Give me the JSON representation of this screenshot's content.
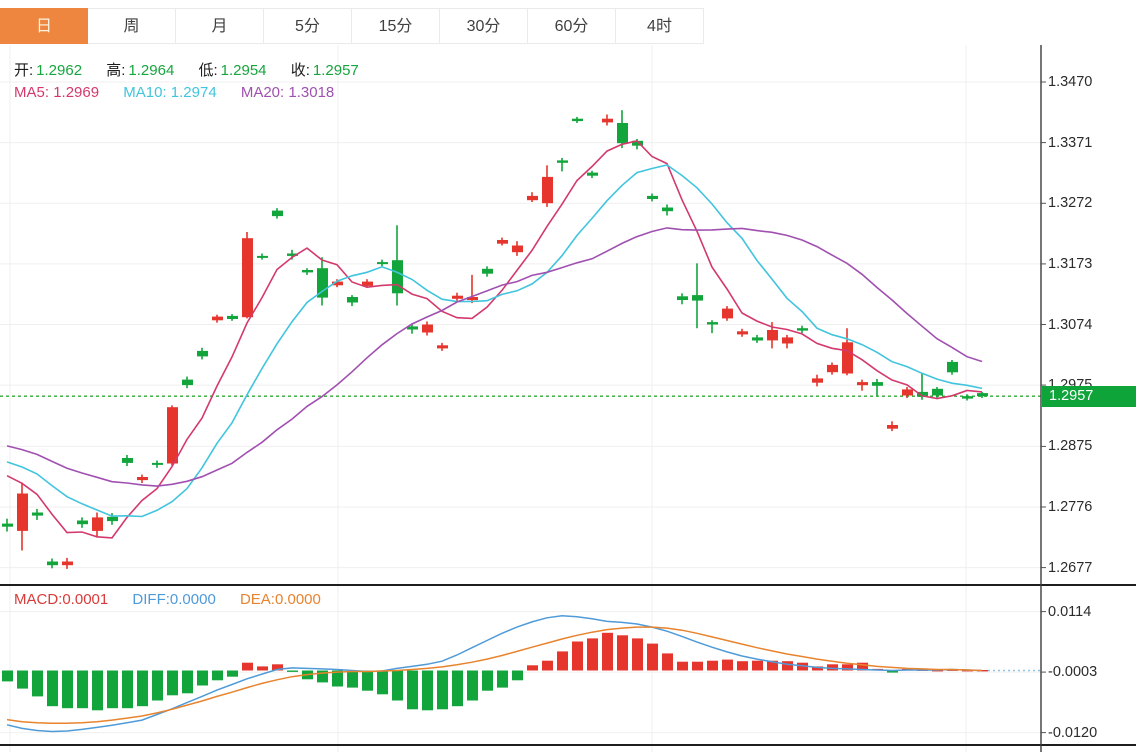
{
  "tabs": [
    {
      "label": "日",
      "active": true
    },
    {
      "label": "周",
      "active": false
    },
    {
      "label": "月",
      "active": false
    },
    {
      "label": "5分",
      "active": false
    },
    {
      "label": "15分",
      "active": false
    },
    {
      "label": "30分",
      "active": false
    },
    {
      "label": "60分",
      "active": false
    },
    {
      "label": "4时",
      "active": false
    }
  ],
  "ohlc_legend": {
    "open_label": "开:",
    "open_value": "1.2962",
    "high_label": "高:",
    "high_value": "1.2964",
    "low_label": "低:",
    "low_value": "1.2954",
    "close_label": "收:",
    "close_value": "1.2957"
  },
  "ma_legend": {
    "ma5_label": "MA5:",
    "ma5_value": "1.2969",
    "ma10_label": "MA10:",
    "ma10_value": "1.2974",
    "ma20_label": "MA20:",
    "ma20_value": "1.3018"
  },
  "macd_legend": {
    "macd_label": "MACD:",
    "macd_value": "0.0001",
    "diff_label": "DIFF:",
    "diff_value": "0.0000",
    "dea_label": "DEA:",
    "dea_value": "0.0000"
  },
  "price_axis": {
    "ticks": [
      "1.3470",
      "1.3371",
      "1.3272",
      "1.3173",
      "1.3074",
      "1.2975",
      "1.2875",
      "1.2776",
      "1.2677"
    ],
    "current_price": "1.2957"
  },
  "macd_axis": {
    "ticks": [
      "0.0114",
      "-0.0003",
      "-0.0120"
    ]
  },
  "colors": {
    "up": "#e5352c",
    "down": "#12a53c",
    "ma5": "#d3396d",
    "ma10": "#41c4dd",
    "ma20": "#a050b0",
    "diff": "#4f9ad8",
    "dea": "#e8832e",
    "active_tab": "#ef8640",
    "price_tag_bg": "#0ea43a",
    "current_line": "#2fa832",
    "grid": "#efefef",
    "axis_line": "#3c3c3c"
  },
  "chart_data": [
    {
      "type": "candlestick",
      "timeframe": "日",
      "up_color_rule": "red-up-green-down",
      "ylim": [
        1.265,
        1.353
      ],
      "axis_tick_values": [
        1.347,
        1.3371,
        1.3272,
        1.3173,
        1.3074,
        1.2975,
        1.2875,
        1.2776,
        1.2677
      ],
      "current_price": 1.2957,
      "ma_periods": [
        5,
        10,
        20
      ],
      "ma_last_values": {
        "ma5": 1.2969,
        "ma10": 1.2974,
        "ma20": 1.3018
      },
      "ma_seed_closes": [
        1.292,
        1.2916,
        1.2912,
        1.2908,
        1.2904,
        1.29,
        1.2896,
        1.2892,
        1.2888,
        1.2884,
        1.288,
        1.2876,
        1.2872,
        1.2868,
        1.2864,
        1.286,
        1.2852,
        1.2844,
        1.2836
      ],
      "ohlc": [
        [
          1.2749,
          1.2757,
          1.2736,
          1.2744
        ],
        [
          1.2737,
          1.2816,
          1.2705,
          1.2798
        ],
        [
          1.2767,
          1.2773,
          1.2755,
          1.2762
        ],
        [
          1.2687,
          1.2692,
          1.2676,
          1.2681
        ],
        [
          1.2681,
          1.2693,
          1.2675,
          1.2687
        ],
        [
          1.2754,
          1.2759,
          1.2742,
          1.2748
        ],
        [
          1.2737,
          1.2767,
          1.2726,
          1.2759
        ],
        [
          1.276,
          1.2766,
          1.2747,
          1.2753
        ],
        [
          1.2856,
          1.2861,
          1.2843,
          1.2848
        ],
        [
          1.282,
          1.2829,
          1.2815,
          1.2825
        ],
        [
          1.2848,
          1.2852,
          1.284,
          1.2845
        ],
        [
          1.2847,
          1.2942,
          1.2844,
          1.2939
        ],
        [
          1.2984,
          1.2989,
          1.297,
          1.2975
        ],
        [
          1.3031,
          1.3036,
          1.3017,
          1.3022
        ],
        [
          1.3081,
          1.309,
          1.3077,
          1.3087
        ],
        [
          1.3088,
          1.3091,
          1.308,
          1.3083
        ],
        [
          1.3086,
          1.3225,
          1.3084,
          1.3215
        ],
        [
          1.3186,
          1.319,
          1.318,
          1.3183
        ],
        [
          1.326,
          1.3264,
          1.3247,
          1.3251
        ],
        [
          1.319,
          1.3196,
          1.318,
          1.3186
        ],
        [
          1.3163,
          1.3166,
          1.3155,
          1.3159
        ],
        [
          1.3166,
          1.3184,
          1.3105,
          1.3118
        ],
        [
          1.3138,
          1.3148,
          1.3135,
          1.3144
        ],
        [
          1.3119,
          1.3122,
          1.3104,
          1.311
        ],
        [
          1.3137,
          1.3148,
          1.3134,
          1.3144
        ],
        [
          1.3176,
          1.318,
          1.3169,
          1.3173
        ],
        [
          1.3179,
          1.3236,
          1.3105,
          1.3125
        ],
        [
          1.3071,
          1.3076,
          1.3059,
          1.3066
        ],
        [
          1.3061,
          1.3079,
          1.3056,
          1.3074
        ],
        [
          1.3035,
          1.3044,
          1.3031,
          1.304
        ],
        [
          1.3116,
          1.3126,
          1.3112,
          1.3121
        ],
        [
          1.3114,
          1.3155,
          1.3109,
          1.3119
        ],
        [
          1.3165,
          1.3169,
          1.3152,
          1.3157
        ],
        [
          1.3206,
          1.3216,
          1.3203,
          1.3212
        ],
        [
          1.3192,
          1.321,
          1.3186,
          1.3203
        ],
        [
          1.3277,
          1.329,
          1.3274,
          1.3284
        ],
        [
          1.3272,
          1.3334,
          1.3266,
          1.3315
        ],
        [
          1.3342,
          1.3346,
          1.3324,
          1.3338
        ],
        [
          1.341,
          1.3413,
          1.3403,
          1.3406
        ],
        [
          1.3322,
          1.3325,
          1.3313,
          1.3317
        ],
        [
          1.3404,
          1.3417,
          1.3399,
          1.341
        ],
        [
          1.3403,
          1.3424,
          1.3362,
          1.337
        ],
        [
          1.3374,
          1.3377,
          1.336,
          1.3366
        ],
        [
          1.3284,
          1.3288,
          1.3275,
          1.3279
        ],
        [
          1.3265,
          1.327,
          1.3252,
          1.3259
        ],
        [
          1.312,
          1.3125,
          1.3107,
          1.3114
        ],
        [
          1.3122,
          1.3174,
          1.3068,
          1.3113
        ],
        [
          1.3078,
          1.3081,
          1.306,
          1.3074
        ],
        [
          1.3084,
          1.3104,
          1.308,
          1.31
        ],
        [
          1.3058,
          1.3067,
          1.3054,
          1.3063
        ],
        [
          1.3053,
          1.3057,
          1.3044,
          1.3048
        ],
        [
          1.3048,
          1.3078,
          1.3035,
          1.3065
        ],
        [
          1.3043,
          1.3057,
          1.3035,
          1.3053
        ],
        [
          1.3068,
          1.3072,
          1.306,
          1.3064
        ],
        [
          1.2979,
          1.2992,
          1.2973,
          1.2986
        ],
        [
          1.2996,
          1.3012,
          1.2992,
          1.3008
        ],
        [
          1.2994,
          1.3068,
          1.2991,
          1.3045
        ],
        [
          1.2975,
          1.2984,
          1.2966,
          1.298
        ],
        [
          1.298,
          1.2985,
          1.2958,
          1.2974
        ],
        [
          1.2904,
          1.2916,
          1.29,
          1.291
        ],
        [
          1.2958,
          1.2972,
          1.2954,
          1.2968
        ],
        [
          1.2964,
          1.2994,
          1.2951,
          1.2956
        ],
        [
          1.2969,
          1.2972,
          1.2954,
          1.2958
        ],
        [
          1.3013,
          1.3016,
          1.2992,
          1.2996
        ],
        [
          1.2957,
          1.296,
          1.295,
          1.2953
        ],
        [
          1.2962,
          1.2964,
          1.2954,
          1.2957
        ]
      ]
    },
    {
      "type": "bar",
      "indicator": "MACD",
      "ylim": [
        -0.0144,
        0.0165
      ],
      "axis_tick_values": [
        0.0114,
        -0.0003,
        -0.012
      ],
      "last_values": {
        "macd": 0.0001,
        "diff": 0.0,
        "dea": 0.0
      },
      "hist": [
        -0.0021,
        -0.0035,
        -0.005,
        -0.0069,
        -0.0073,
        -0.0073,
        -0.0077,
        -0.0073,
        -0.0073,
        -0.0069,
        -0.0058,
        -0.0048,
        -0.0044,
        -0.0029,
        -0.0019,
        -0.0012,
        0.0015,
        0.0008,
        0.0012,
        -0.0002,
        -0.0017,
        -0.0023,
        -0.0031,
        -0.0033,
        -0.0039,
        -0.0046,
        -0.0058,
        -0.0075,
        -0.0077,
        -0.0075,
        -0.0069,
        -0.0058,
        -0.0039,
        -0.0033,
        -0.0019,
        0.001,
        0.0019,
        0.0037,
        0.0056,
        0.0062,
        0.0073,
        0.0068,
        0.0062,
        0.0052,
        0.0033,
        0.0017,
        0.0017,
        0.0019,
        0.0021,
        0.0018,
        0.0019,
        0.0019,
        0.0018,
        0.0015,
        0.0008,
        0.0012,
        0.0012,
        0.0015,
        0.0003,
        -0.0004,
        0.0003,
        0.0002,
        0.0001,
        0.0002,
        0.0001,
        0.0001
      ],
      "diff": [
        -0.0105,
        -0.0112,
        -0.0116,
        -0.0118,
        -0.0117,
        -0.0114,
        -0.011,
        -0.0106,
        -0.0101,
        -0.0096,
        -0.0085,
        -0.0074,
        -0.0062,
        -0.005,
        -0.0038,
        -0.0027,
        -0.0016,
        -0.0007,
        0.0002,
        0.0005,
        0.0004,
        0.0003,
        0.0002,
        0.0,
        -0.0002,
        -0.0001,
        0.0004,
        0.0008,
        0.0012,
        0.0018,
        0.003,
        0.0044,
        0.0058,
        0.0072,
        0.0084,
        0.0094,
        0.0102,
        0.0106,
        0.0104,
        0.01,
        0.0095,
        0.0093,
        0.009,
        0.0084,
        0.0076,
        0.0066,
        0.0055,
        0.0045,
        0.0036,
        0.0028,
        0.0022,
        0.0017,
        0.0012,
        0.0009,
        0.0006,
        0.0004,
        0.0003,
        0.0002,
        0.0001,
        0.0,
        0.0001,
        0.0001,
        0.0001,
        0.0002,
        0.0001,
        0.0
      ],
      "dea": [
        -0.0095,
        -0.0099,
        -0.0101,
        -0.0102,
        -0.0102,
        -0.0101,
        -0.0099,
        -0.0096,
        -0.0092,
        -0.0088,
        -0.0082,
        -0.0075,
        -0.0067,
        -0.0059,
        -0.005,
        -0.0042,
        -0.0033,
        -0.0025,
        -0.0018,
        -0.0012,
        -0.0008,
        -0.0005,
        -0.0003,
        -0.0002,
        -0.0002,
        -0.0001,
        0.0,
        0.0002,
        0.0004,
        0.0007,
        0.0011,
        0.0016,
        0.0022,
        0.0029,
        0.0037,
        0.0045,
        0.0053,
        0.0061,
        0.0068,
        0.0074,
        0.0079,
        0.0082,
        0.0084,
        0.0084,
        0.0082,
        0.0078,
        0.0072,
        0.0065,
        0.0058,
        0.0051,
        0.0044,
        0.0038,
        0.0032,
        0.0027,
        0.0022,
        0.0018,
        0.0014,
        0.0011,
        0.0008,
        0.0006,
        0.0004,
        0.0003,
        0.0002,
        0.0002,
        0.0001,
        0.0
      ]
    }
  ]
}
